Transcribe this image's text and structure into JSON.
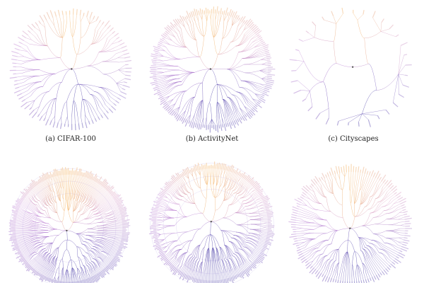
{
  "panels": [
    {
      "caption": "(a) CIFAR-100",
      "shape": "fan",
      "depth": 3,
      "leaves": 100,
      "seed": 11
    },
    {
      "caption": "(b) ActivityNet",
      "shape": "fan",
      "depth": 3,
      "leaves": 200,
      "seed": 23
    },
    {
      "caption": "(c) Cityscapes",
      "shape": "sparse",
      "depth": 3,
      "leaves": 34,
      "seed": 37
    },
    {
      "caption": "",
      "shape": "dense",
      "depth": 5,
      "leaves": 260,
      "seed": 41
    },
    {
      "caption": "",
      "shape": "dense",
      "depth": 4,
      "leaves": 240,
      "seed": 53
    },
    {
      "caption": "",
      "shape": "fan",
      "depth": 4,
      "leaves": 150,
      "seed": 67
    }
  ],
  "colors": {
    "gradient": [
      "#f5b25a",
      "#d99fc8",
      "#8e72c8",
      "#4a3fa8",
      "#9c6ac8",
      "#c890d8"
    ],
    "label": "#7b5fc0"
  }
}
